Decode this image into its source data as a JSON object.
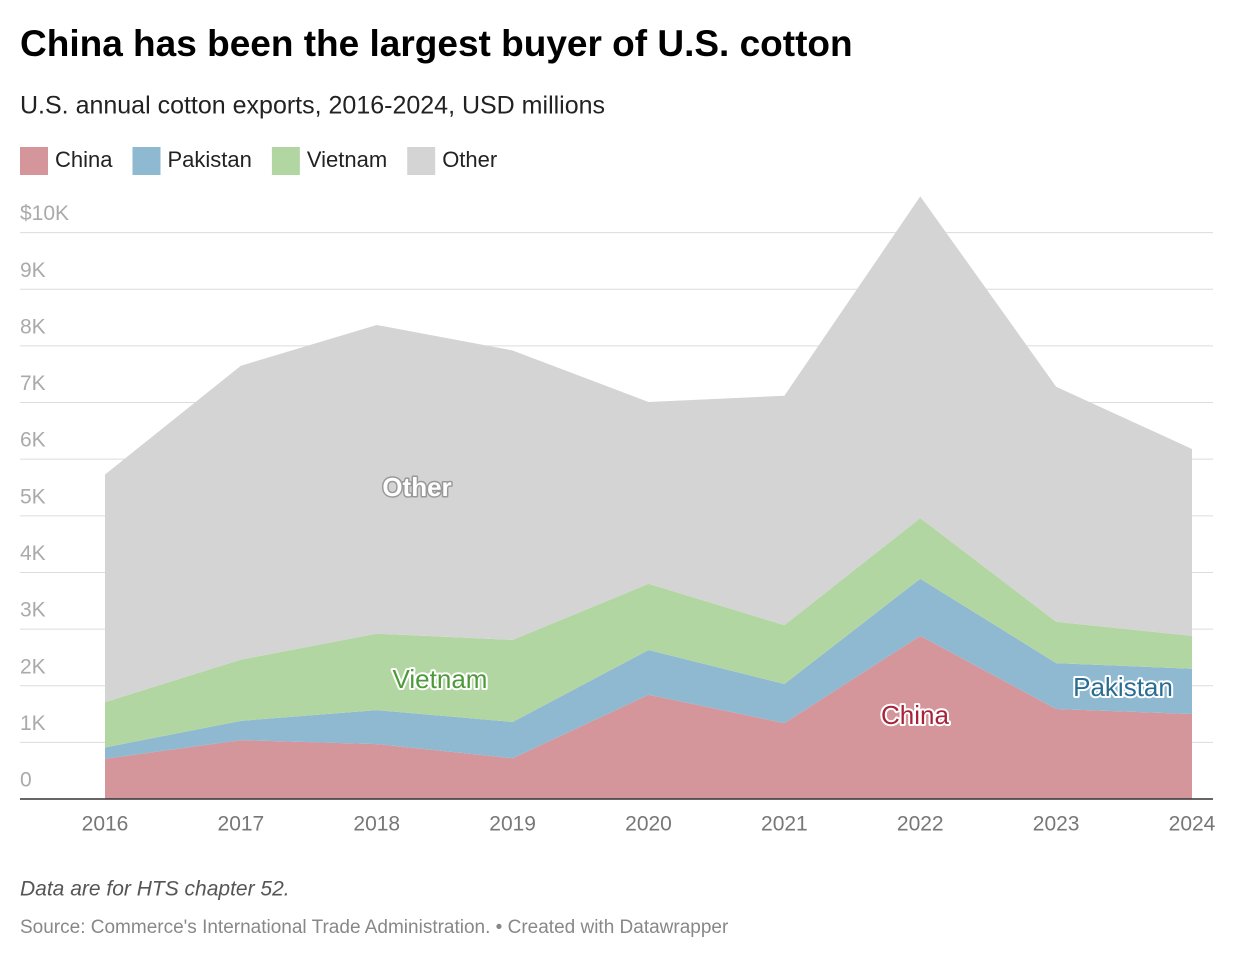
{
  "chart_data": {
    "type": "stacked_area",
    "title": "China has been the largest buyer of U.S. cotton",
    "subtitle": "U.S. annual cotton exports, 2016-2024, USD millions",
    "categories": [
      "2016",
      "2017",
      "2018",
      "2019",
      "2020",
      "2021",
      "2022",
      "2023",
      "2024"
    ],
    "series": [
      {
        "name": "China",
        "color": "#d4959b",
        "label_color": "#a8223a",
        "values": [
          710,
          1040,
          970,
          720,
          1840,
          1340,
          2880,
          1590,
          1500
        ]
      },
      {
        "name": "Pakistan",
        "color": "#8fb9d1",
        "label_color": "#2a6c92",
        "values": [
          200,
          340,
          600,
          640,
          790,
          690,
          1010,
          810,
          800
        ]
      },
      {
        "name": "Vietnam",
        "color": "#b2d6a2",
        "label_color": "#4e9a3b",
        "values": [
          800,
          1080,
          1350,
          1450,
          1170,
          1040,
          1070,
          730,
          580
        ]
      },
      {
        "name": "Other",
        "color": "#d4d4d4",
        "label_color": "#ffffff",
        "values": [
          4020,
          5190,
          5450,
          5110,
          3210,
          4050,
          5680,
          4150,
          3300
        ]
      }
    ],
    "ylim": [
      0,
      10700
    ],
    "yticks": [
      0,
      {
        "value": 1000,
        "label": "1K"
      },
      {
        "value": 2000,
        "label": "2K"
      },
      {
        "value": 3000,
        "label": "3K"
      },
      {
        "value": 4000,
        "label": "4K"
      },
      {
        "value": 5000,
        "label": "5K"
      },
      {
        "value": 6000,
        "label": "6K"
      },
      {
        "value": 7000,
        "label": "7K"
      },
      {
        "value": 8000,
        "label": "8K"
      },
      {
        "value": 9000,
        "label": "9K"
      },
      {
        "value": 10000,
        "label": "$10K"
      }
    ],
    "grid": true,
    "note": "Data are for HTS chapter 52.",
    "source": "Source: Commerce's International Trade Administration. • Created with Datawrapper"
  }
}
